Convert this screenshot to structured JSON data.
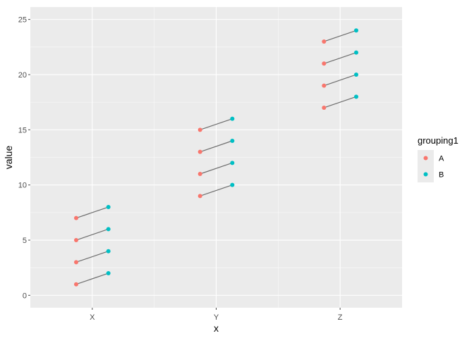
{
  "chart_data": {
    "type": "scatter",
    "xlabel": "x",
    "ylabel": "value",
    "categories": [
      "X",
      "Y",
      "Z"
    ],
    "ylim": [
      0,
      25
    ],
    "yticks": [
      0,
      5,
      10,
      15,
      20,
      25
    ],
    "grid": true,
    "legend": {
      "title": "grouping1",
      "placement": "right",
      "entries": [
        {
          "label": "A",
          "color": "#F8766D"
        },
        {
          "label": "B",
          "color": "#00BFC4"
        }
      ]
    },
    "series": [
      {
        "name": "A",
        "color": "#F8766D",
        "points": [
          {
            "x": "X",
            "y": 1
          },
          {
            "x": "X",
            "y": 3
          },
          {
            "x": "X",
            "y": 5
          },
          {
            "x": "X",
            "y": 7
          },
          {
            "x": "Y",
            "y": 9
          },
          {
            "x": "Y",
            "y": 11
          },
          {
            "x": "Y",
            "y": 13
          },
          {
            "x": "Y",
            "y": 15
          },
          {
            "x": "Z",
            "y": 17
          },
          {
            "x": "Z",
            "y": 19
          },
          {
            "x": "Z",
            "y": 21
          },
          {
            "x": "Z",
            "y": 23
          }
        ]
      },
      {
        "name": "B",
        "color": "#00BFC4",
        "points": [
          {
            "x": "X",
            "y": 2
          },
          {
            "x": "X",
            "y": 4
          },
          {
            "x": "X",
            "y": 6
          },
          {
            "x": "X",
            "y": 8
          },
          {
            "x": "Y",
            "y": 10
          },
          {
            "x": "Y",
            "y": 12
          },
          {
            "x": "Y",
            "y": 14
          },
          {
            "x": "Y",
            "y": 16
          },
          {
            "x": "Z",
            "y": 18
          },
          {
            "x": "Z",
            "y": 20
          },
          {
            "x": "Z",
            "y": 22
          },
          {
            "x": "Z",
            "y": 24
          }
        ]
      }
    ],
    "segments": [
      {
        "x": "X",
        "from": 1,
        "to": 2
      },
      {
        "x": "X",
        "from": 3,
        "to": 4
      },
      {
        "x": "X",
        "from": 5,
        "to": 6
      },
      {
        "x": "X",
        "from": 7,
        "to": 8
      },
      {
        "x": "Y",
        "from": 9,
        "to": 10
      },
      {
        "x": "Y",
        "from": 11,
        "to": 12
      },
      {
        "x": "Y",
        "from": 13,
        "to": 14
      },
      {
        "x": "Y",
        "from": 15,
        "to": 16
      },
      {
        "x": "Z",
        "from": 17,
        "to": 18
      },
      {
        "x": "Z",
        "from": 19,
        "to": 20
      },
      {
        "x": "Z",
        "from": 21,
        "to": 22
      },
      {
        "x": "Z",
        "from": 23,
        "to": 24
      }
    ],
    "colors": {
      "panel": "#EBEBEB",
      "grid": "#FFFFFF",
      "segment": "#6E6E6E",
      "tick": "#4D4D4D"
    }
  }
}
